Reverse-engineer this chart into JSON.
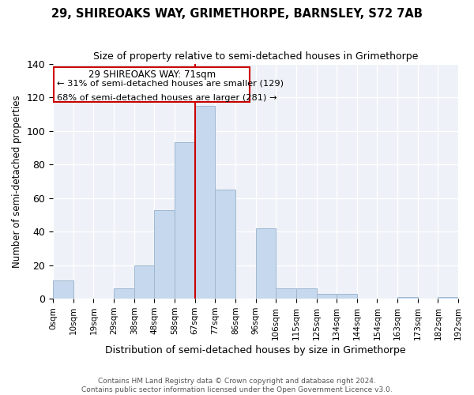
{
  "title1": "29, SHIREOAKS WAY, GRIMETHORPE, BARNSLEY, S72 7AB",
  "title2": "Size of property relative to semi-detached houses in Grimethorpe",
  "xlabel": "Distribution of semi-detached houses by size in Grimethorpe",
  "ylabel": "Number of semi-detached properties",
  "footnote": "Contains HM Land Registry data © Crown copyright and database right 2024.\nContains public sector information licensed under the Open Government Licence v3.0.",
  "bin_labels": [
    "0sqm",
    "10sqm",
    "19sqm",
    "29sqm",
    "38sqm",
    "48sqm",
    "58sqm",
    "67sqm",
    "77sqm",
    "86sqm",
    "96sqm",
    "106sqm",
    "115sqm",
    "125sqm",
    "134sqm",
    "144sqm",
    "154sqm",
    "163sqm",
    "173sqm",
    "182sqm",
    "192sqm"
  ],
  "bar_values": [
    11,
    0,
    0,
    6,
    20,
    53,
    93,
    115,
    65,
    0,
    42,
    6,
    6,
    3,
    3,
    0,
    0,
    1,
    0,
    1
  ],
  "bar_color": "#c5d8ed",
  "bar_edge_color": "#a0b8d0",
  "vline_x": 6.5,
  "annotation_title": "29 SHIREOAKS WAY: 71sqm",
  "annotation_line1": "← 31% of semi-detached houses are smaller (129)",
  "annotation_line2": "68% of semi-detached houses are larger (281) →",
  "box_color": "#cc0000",
  "ylim": [
    0,
    140
  ],
  "yticks": [
    0,
    20,
    40,
    60,
    80,
    100,
    120,
    140
  ]
}
